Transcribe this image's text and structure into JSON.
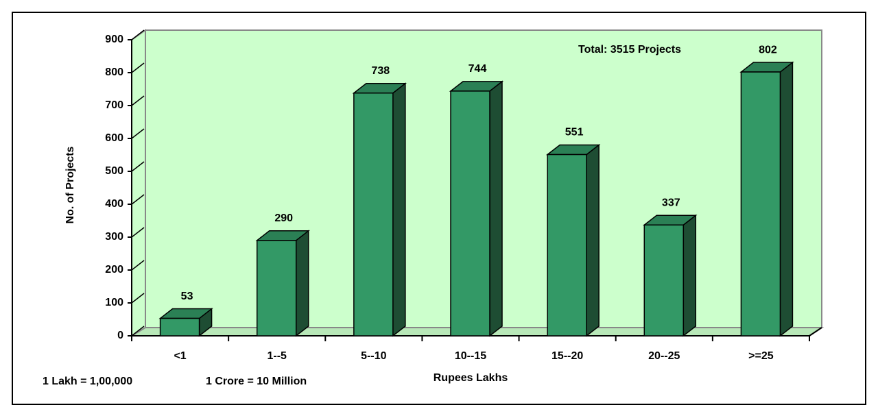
{
  "chart_data": {
    "type": "bar",
    "categories": [
      "<1",
      "1--5",
      "5--10",
      "10--15",
      "15--20",
      "20--25",
      ">=25"
    ],
    "values": [
      53,
      290,
      738,
      744,
      551,
      337,
      802
    ],
    "color": "#339966",
    "ylim": [
      0,
      900
    ],
    "yticks": [
      0,
      100,
      200,
      300,
      400,
      500,
      600,
      700,
      800,
      900
    ],
    "y_label": "No. of Projects",
    "x_label": "Rupees Lakhs",
    "annotation": "Total: 3515 Projects",
    "notes": [
      "1 Lakh = 1,00,000",
      "1 Crore = 10 Million"
    ]
  }
}
